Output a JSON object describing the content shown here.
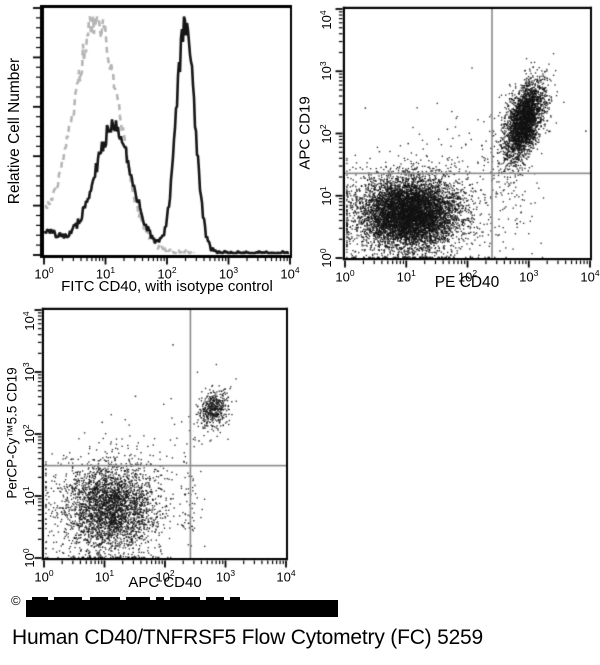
{
  "figure": {
    "caption": "Human CD40/TNFRSF5 Flow Cytometry (FC) 5259",
    "copyright_symbol": "©"
  },
  "chart_data": [
    {
      "id": "cd40-histogram",
      "type": "line",
      "xlabel": "FITC CD40, with isotype control",
      "ylabel": "Relative Cell Number",
      "x_scale": "log10",
      "x_axis_decades": [
        0,
        4
      ],
      "x_tick_base": "10",
      "x_tick_exponents": [
        0,
        1,
        2,
        3,
        4
      ],
      "y_axis_note": "linear, unlabeled relative count",
      "series": [
        {
          "name": "isotype control",
          "line_style": "dashed",
          "color": "#b5b5b5",
          "baseline": 0.13,
          "baseline_decay": 0.8,
          "draw_until_log": 2.45,
          "peaks": [
            {
              "center_log": 0.86,
              "sigma_log": 0.36,
              "amplitude": 0.93
            }
          ]
        },
        {
          "name": "FITC CD40",
          "line_style": "solid",
          "color": "#161616",
          "baseline": 0.1,
          "baseline_decay": 0.8,
          "draw_until_log": 4.0,
          "peaks": [
            {
              "center_log": 1.13,
              "sigma_log": 0.3,
              "amplitude": 0.5
            },
            {
              "center_log": 2.3,
              "sigma_log": 0.15,
              "amplitude": 0.95
            }
          ]
        }
      ]
    },
    {
      "id": "pe-cd40-vs-apc-cd19",
      "type": "scatter",
      "xlabel": "PE CD40",
      "ylabel": "APC CD19",
      "x_scale": "log10",
      "y_scale": "log10",
      "x_tick_base": "10",
      "y_tick_base": "10",
      "x_tick_exponents": [
        0,
        1,
        2,
        3,
        4
      ],
      "y_tick_exponents": [
        0,
        1,
        2,
        3,
        4
      ],
      "quadrant_gate": {
        "x_log": 2.4,
        "y_log": 1.36
      },
      "point_color": "rgba(18,18,18,0.88)",
      "populations": [
        {
          "name": "double-negative main",
          "center_log": [
            1.05,
            0.72
          ],
          "sigma_log": [
            0.4,
            0.28
          ],
          "corr": 0.0,
          "count": 6500
        },
        {
          "name": "double-negative halo",
          "center_log": [
            1.08,
            0.72
          ],
          "sigma_log": [
            0.65,
            0.45
          ],
          "corr": 0.0,
          "count": 900
        },
        {
          "name": "CD40+CD19+ B cells",
          "center_log": [
            2.92,
            2.22
          ],
          "sigma_log": [
            0.15,
            0.3
          ],
          "corr": 0.5,
          "count": 2700
        },
        {
          "name": "B-cell halo",
          "center_log": [
            2.88,
            2.12
          ],
          "sigma_log": [
            0.26,
            0.4
          ],
          "corr": 0.45,
          "count": 330
        },
        {
          "name": "lower-right sparse",
          "center_log": [
            2.72,
            0.95
          ],
          "sigma_log": [
            0.2,
            0.45
          ],
          "corr": 0.0,
          "count": 70
        },
        {
          "name": "mid sparse",
          "center_log": [
            1.95,
            1.6
          ],
          "sigma_log": [
            0.6,
            0.45
          ],
          "corr": 0.0,
          "count": 55
        }
      ],
      "extra_points_log": [
        [
          0.32,
          2.42
        ],
        [
          1.02,
          1.85
        ],
        [
          1.66,
          2.08
        ],
        [
          0.55,
          1.72
        ],
        [
          3.92,
          2.05
        ]
      ]
    },
    {
      "id": "apc-cd40-vs-percp-cd19",
      "type": "scatter",
      "xlabel": "APC CD40",
      "ylabel": "PerCP-Cy™5.5 CD19",
      "x_scale": "log10",
      "y_scale": "log10",
      "x_tick_base": "10",
      "y_tick_base": "10",
      "x_tick_exponents": [
        0,
        1,
        2,
        3,
        4
      ],
      "y_tick_exponents": [
        0,
        1,
        2,
        3,
        4
      ],
      "quadrant_gate": {
        "x_log": 2.42,
        "y_log": 1.49
      },
      "point_color": "rgba(18,18,18,0.88)",
      "populations": [
        {
          "name": "double-negative main",
          "center_log": [
            1.09,
            0.82
          ],
          "sigma_log": [
            0.38,
            0.36
          ],
          "corr": 0.0,
          "count": 2700
        },
        {
          "name": "double-negative halo",
          "center_log": [
            1.1,
            0.85
          ],
          "sigma_log": [
            0.6,
            0.5
          ],
          "corr": 0.0,
          "count": 430
        },
        {
          "name": "CD40+CD19+ B cells",
          "center_log": [
            2.79,
            2.42
          ],
          "sigma_log": [
            0.12,
            0.15
          ],
          "corr": 0.3,
          "count": 390
        },
        {
          "name": "B-cell halo",
          "center_log": [
            2.76,
            2.33
          ],
          "sigma_log": [
            0.2,
            0.28
          ],
          "corr": 0.3,
          "count": 60
        },
        {
          "name": "gate-line sparse",
          "center_log": [
            2.4,
            0.8
          ],
          "sigma_log": [
            0.07,
            0.48
          ],
          "corr": 0.0,
          "count": 45
        },
        {
          "name": "mid sparse",
          "center_log": [
            1.85,
            1.65
          ],
          "sigma_log": [
            0.5,
            0.4
          ],
          "corr": 0.0,
          "count": 30
        }
      ],
      "extra_points_log": [
        [
          2.12,
          3.45
        ],
        [
          1.5,
          2.62
        ],
        [
          0.95,
          2.2
        ],
        [
          2.55,
          1.9
        ]
      ]
    }
  ]
}
